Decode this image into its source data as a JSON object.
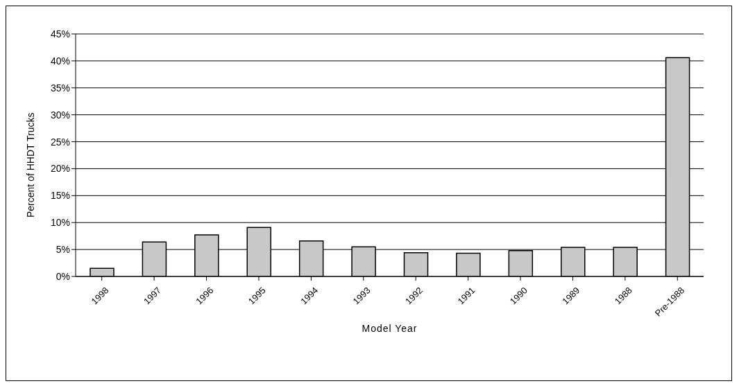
{
  "chart_data": {
    "type": "bar",
    "xlabel": "Model Year",
    "ylabel": "Percent of HHDT Trucks",
    "categories": [
      "1998",
      "1997",
      "1996",
      "1995",
      "1994",
      "1993",
      "1992",
      "1991",
      "1990",
      "1989",
      "1988",
      "Pre-1988"
    ],
    "values": [
      1.5,
      6.4,
      7.7,
      9.1,
      6.6,
      5.5,
      4.4,
      4.3,
      4.8,
      5.4,
      5.4,
      40.6
    ],
    "color": "#c8c8c8",
    "ylim": [
      0,
      45
    ],
    "yticks": [
      {
        "value": 0,
        "label": "0%"
      },
      {
        "value": 5,
        "label": "5%"
      },
      {
        "value": 10,
        "label": "10%"
      },
      {
        "value": 15,
        "label": "15%"
      },
      {
        "value": 20,
        "label": "20%"
      },
      {
        "value": 25,
        "label": "25%"
      },
      {
        "value": 30,
        "label": "30%"
      },
      {
        "value": 35,
        "label": "35%"
      },
      {
        "value": 40,
        "label": "40%"
      },
      {
        "value": 45,
        "label": "45%"
      }
    ],
    "grid": "y"
  }
}
